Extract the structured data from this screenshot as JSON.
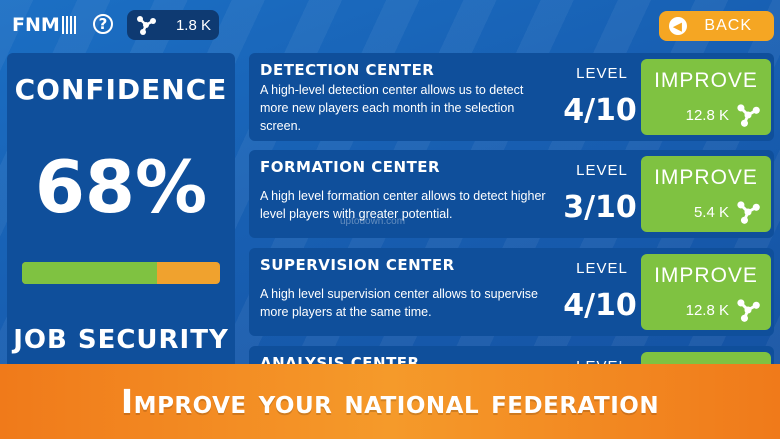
{
  "header": {
    "logo_text": "FNM",
    "help_symbol": "?",
    "currency_amount": "1.8 K",
    "back_label": "BACK"
  },
  "left_panel": {
    "confidence_title": "CONFIDENCE",
    "confidence_value": "68%",
    "confidence_fraction": 0.68,
    "job_security_title": "JOB SECURITY"
  },
  "cards": [
    {
      "name": "DETECTION CENTER",
      "description": "A high-level detection center allows us to detect more new players each month in the selection screen.",
      "level_label": "LEVEL",
      "level": "4/10",
      "improve_label": "IMPROVE",
      "cost": "12.8 K"
    },
    {
      "name": "FORMATION CENTER",
      "description": "A high level formation center allows to detect higher level players with greater potential.",
      "level_label": "LEVEL",
      "level": "3/10",
      "improve_label": "IMPROVE",
      "cost": "5.4 K"
    },
    {
      "name": "SUPERVISION CENTER",
      "description": "A high level supervision center allows to supervise more players at the same time.",
      "level_label": "LEVEL",
      "level": "4/10",
      "improve_label": "IMPROVE",
      "cost": "12.8 K"
    },
    {
      "name": "ANALYSIS CENTER",
      "level_label": "LEVEL"
    }
  ],
  "watermark": "uptodown.com",
  "banner_text": "Improve your national federation",
  "colors": {
    "background": "#1860b3",
    "panel": "#0f4f9b",
    "improve_green": "#7fc241",
    "back_orange": "#f5a623",
    "banner_orange": "#f28a22"
  },
  "icons": {
    "currency": "network-nodes-icon",
    "back": "chevron-left-icon",
    "help": "question-circle-icon"
  }
}
